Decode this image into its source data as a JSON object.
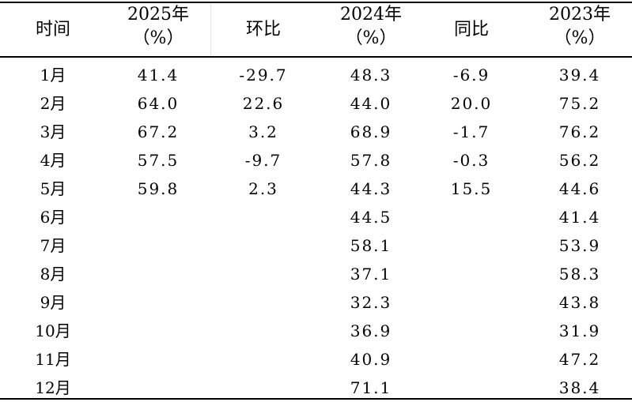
{
  "table": {
    "headers": {
      "time": "时间",
      "y2025_year": "2025年",
      "y2025_unit": "（%）",
      "mom": "环比",
      "y2024_year": "2024年",
      "y2024_unit": "（%）",
      "yoy": "同比",
      "y2023_year": "2023年",
      "y2023_unit": "（%）"
    },
    "rows": [
      {
        "time": "1月",
        "y2025": "41.4",
        "mom": "-29.7",
        "y2024": "48.3",
        "yoy": "-6.9",
        "y2023": "39.4"
      },
      {
        "time": "2月",
        "y2025": "64.0",
        "mom": "22.6",
        "y2024": "44.0",
        "yoy": "20.0",
        "y2023": "75.2"
      },
      {
        "time": "3月",
        "y2025": "67.2",
        "mom": "3.2",
        "y2024": "68.9",
        "yoy": "-1.7",
        "y2023": "76.2"
      },
      {
        "time": "4月",
        "y2025": "57.5",
        "mom": "-9.7",
        "y2024": "57.8",
        "yoy": "-0.3",
        "y2023": "56.2"
      },
      {
        "time": "5月",
        "y2025": "59.8",
        "mom": "2.3",
        "y2024": "44.3",
        "yoy": "15.5",
        "y2023": "44.6"
      },
      {
        "time": "6月",
        "y2025": "",
        "mom": "",
        "y2024": "44.5",
        "yoy": "",
        "y2023": "41.4"
      },
      {
        "time": "7月",
        "y2025": "",
        "mom": "",
        "y2024": "58.1",
        "yoy": "",
        "y2023": "53.9"
      },
      {
        "time": "8月",
        "y2025": "",
        "mom": "",
        "y2024": "37.1",
        "yoy": "",
        "y2023": "58.3"
      },
      {
        "time": "9月",
        "y2025": "",
        "mom": "",
        "y2024": "32.3",
        "yoy": "",
        "y2023": "43.8"
      },
      {
        "time": "10月",
        "y2025": "",
        "mom": "",
        "y2024": "36.9",
        "yoy": "",
        "y2023": "31.9"
      },
      {
        "time": "11月",
        "y2025": "",
        "mom": "",
        "y2024": "40.9",
        "yoy": "",
        "y2023": "47.2"
      },
      {
        "time": "12月",
        "y2025": "",
        "mom": "",
        "y2024": "71.1",
        "yoy": "",
        "y2023": "38.4"
      }
    ]
  }
}
